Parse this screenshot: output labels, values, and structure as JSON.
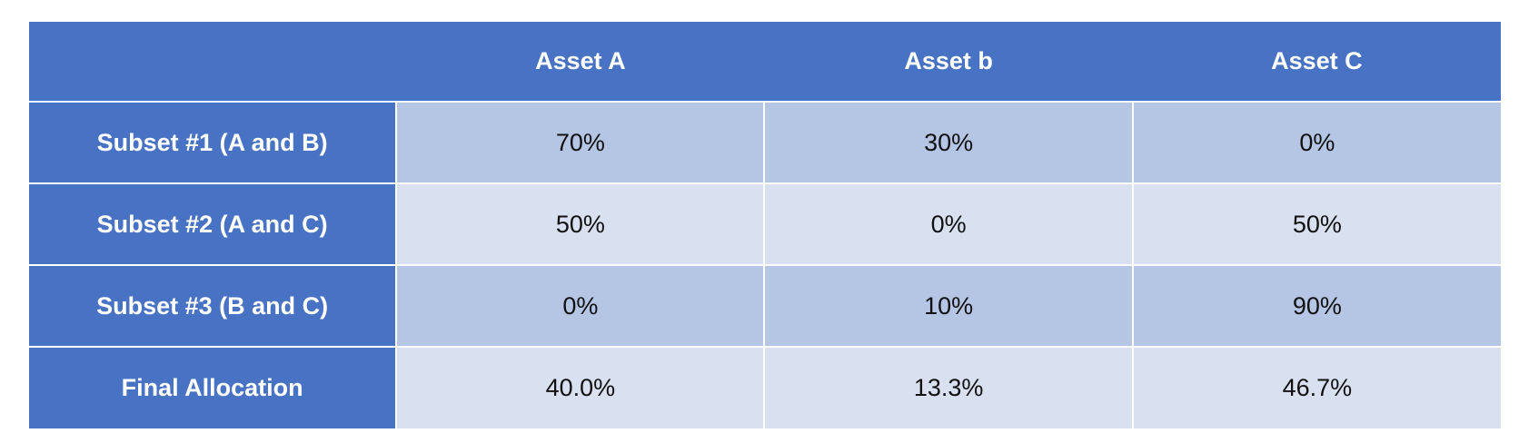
{
  "table": {
    "columns": [
      "",
      "Asset A",
      "Asset b",
      "Asset C"
    ],
    "rows": [
      {
        "label": "Subset #1 (A and B)",
        "values": [
          "70%",
          "30%",
          "0%"
        ]
      },
      {
        "label": "Subset #2 (A and C)",
        "values": [
          "50%",
          "0%",
          "50%"
        ]
      },
      {
        "label": "Subset #3 (B and C)",
        "values": [
          "0%",
          "10%",
          "90%"
        ]
      },
      {
        "label": "Final Allocation",
        "values": [
          "40.0%",
          "13.3%",
          "46.7%"
        ]
      }
    ]
  },
  "colors": {
    "header_bg": "#4872c3",
    "band_dark": "#b5c5e4",
    "band_light": "#d9e0f0",
    "header_text": "#ffffff",
    "cell_text": "#111111"
  }
}
